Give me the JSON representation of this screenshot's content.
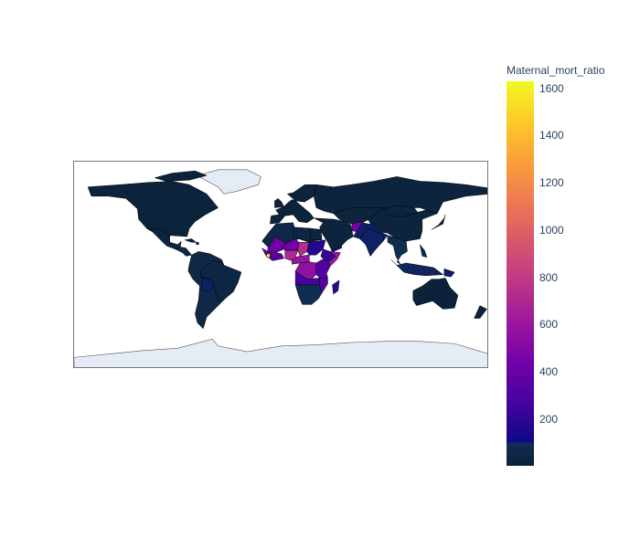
{
  "chart_data": {
    "type": "choropleth",
    "title": "",
    "colorbar": {
      "title": "Maternal_mort_ratio",
      "range": [
        1,
        1630
      ],
      "ticks": [
        200,
        400,
        600,
        800,
        1000,
        1200,
        1400,
        1600
      ],
      "colorscale": [
        "#0d0887",
        "#46039f",
        "#7201a8",
        "#9c179e",
        "#bd3786",
        "#d8576b",
        "#ed7953",
        "#fb9f3a",
        "#fdca26",
        "#f0f921"
      ]
    },
    "projection": "equirectangular",
    "missing_color": "#e5ecf6",
    "country_values_approx": {
      "Northern America": 20,
      "Europe": 10,
      "Russia": 25,
      "China": 30,
      "South America": 80,
      "Brazil": 60,
      "Bolivia": 200,
      "Haiti": 350,
      "Mongolia": 45,
      "India": 200,
      "South Asia": 200,
      "Southeast Asia": 150,
      "Indonesia": 180,
      "Papua New Guinea": 220,
      "Australia": 6,
      "Egypt": 35,
      "Libya": 60,
      "Algeria": 90,
      "Sudan": 360,
      "Chad": 850,
      "Niger": 600,
      "Mali": 580,
      "Nigeria": 820,
      "Sierra Leone": 1620,
      "Ethiopia": 400,
      "Somalia": 750,
      "DR Congo": 700,
      "Central Africa": 720,
      "East Africa": 500,
      "Madagascar": 380,
      "Southern Africa": 150,
      "Yemen": 350,
      "Afghanistan": 600
    }
  }
}
